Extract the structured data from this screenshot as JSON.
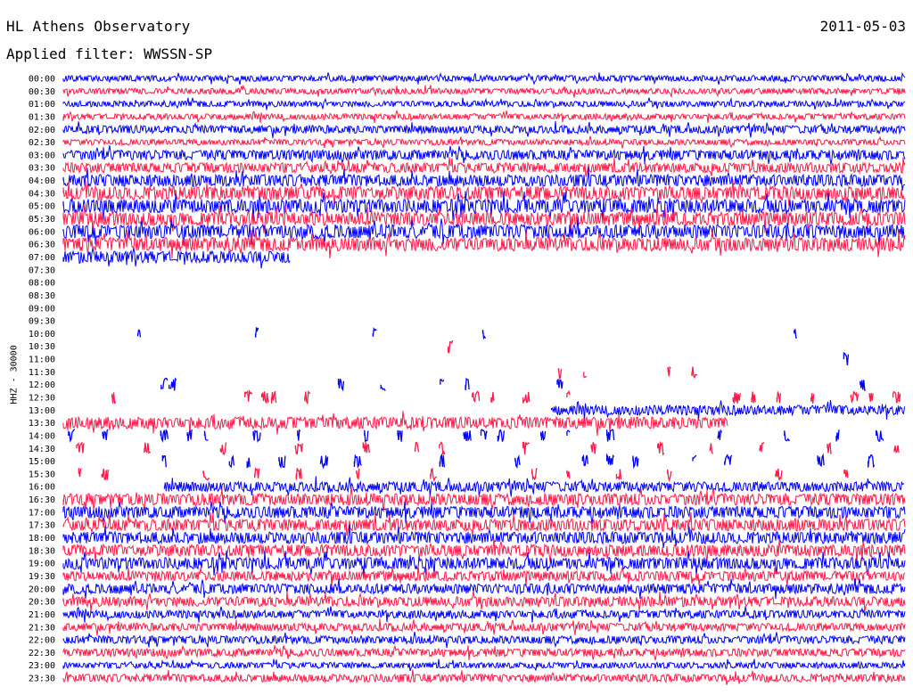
{
  "header": {
    "station": "HL Athens Observatory",
    "date": "2011-05-03",
    "filter": "Applied filter: WWSSN-SP"
  },
  "channel_label": "HHZ - 30000",
  "colors": {
    "odd": "#0000ff",
    "even": "#ff1a4a"
  },
  "chart_data": {
    "type": "line",
    "subtype": "helicorder",
    "title": "HL Athens Observatory",
    "xlabel": "",
    "ylabel": "HHZ - 30000",
    "row_labels": [
      "00:00",
      "00:30",
      "01:00",
      "01:30",
      "02:00",
      "02:30",
      "03:00",
      "03:30",
      "04:00",
      "04:30",
      "05:00",
      "05:30",
      "06:00",
      "06:30",
      "07:00",
      "07:30",
      "08:00",
      "08:30",
      "09:00",
      "09:30",
      "10:00",
      "10:30",
      "11:00",
      "11:30",
      "12:00",
      "12:30",
      "13:00",
      "13:30",
      "14:00",
      "14:30",
      "15:00",
      "15:30",
      "16:00",
      "16:30",
      "17:00",
      "17:30",
      "18:00",
      "18:30",
      "19:00",
      "19:30",
      "20:00",
      "20:30",
      "21:00",
      "21:30",
      "22:00",
      "22:30",
      "23:00",
      "23:30"
    ],
    "row_minutes": 30,
    "series": [
      {
        "label": "00:00",
        "start": 0,
        "end": 1,
        "amp": 3
      },
      {
        "label": "00:30",
        "start": 0,
        "end": 1,
        "amp": 3
      },
      {
        "label": "01:00",
        "start": 0,
        "end": 1,
        "amp": 3
      },
      {
        "label": "01:30",
        "start": 0,
        "end": 1,
        "amp": 3
      },
      {
        "label": "02:00",
        "start": 0,
        "end": 1,
        "amp": 4
      },
      {
        "label": "02:30",
        "start": 0,
        "end": 1,
        "amp": 3
      },
      {
        "label": "03:00",
        "start": 0,
        "end": 1,
        "amp": 5
      },
      {
        "label": "03:30",
        "start": 0,
        "end": 1,
        "amp": 5
      },
      {
        "label": "04:00",
        "start": 0,
        "end": 1,
        "amp": 6
      },
      {
        "label": "04:30",
        "start": 0,
        "end": 1,
        "amp": 7
      },
      {
        "label": "05:00",
        "start": 0,
        "end": 1,
        "amp": 7
      },
      {
        "label": "05:30",
        "start": 0,
        "end": 1,
        "amp": 7
      },
      {
        "label": "06:00",
        "start": 0,
        "end": 1,
        "amp": 7
      },
      {
        "label": "06:30",
        "start": 0,
        "end": 1,
        "amp": 7
      },
      {
        "label": "07:00",
        "start": 0,
        "end": 0.27,
        "amp": 6
      },
      {
        "label": "07:30",
        "start": 0,
        "end": 0,
        "amp": 0
      },
      {
        "label": "08:00",
        "start": 0,
        "end": 0,
        "amp": 0
      },
      {
        "label": "08:30",
        "start": 0,
        "end": 0,
        "amp": 0
      },
      {
        "label": "09:00",
        "start": 0,
        "end": 0,
        "amp": 0
      },
      {
        "label": "09:30",
        "start": 0,
        "end": 0,
        "amp": 0
      },
      {
        "label": "10:00",
        "start": 0,
        "end": 0,
        "amp": 0
      },
      {
        "label": "10:30",
        "start": 0,
        "end": 0,
        "amp": 0
      },
      {
        "label": "11:00",
        "start": 0,
        "end": 0,
        "amp": 0
      },
      {
        "label": "11:30",
        "start": 0,
        "end": 0,
        "amp": 0
      },
      {
        "label": "12:00",
        "start": 0,
        "end": 0,
        "amp": 0
      },
      {
        "label": "12:30",
        "start": 0,
        "end": 0,
        "amp": 0
      },
      {
        "label": "13:00",
        "start": 0.58,
        "end": 1,
        "amp": 5
      },
      {
        "label": "13:30",
        "start": 0,
        "end": 0.79,
        "amp": 6
      },
      {
        "label": "14:00",
        "start": 0,
        "end": 0,
        "amp": 0
      },
      {
        "label": "14:30",
        "start": 0,
        "end": 0,
        "amp": 0
      },
      {
        "label": "15:00",
        "start": 0,
        "end": 0,
        "amp": 0
      },
      {
        "label": "15:30",
        "start": 0,
        "end": 0,
        "amp": 0
      },
      {
        "label": "16:00",
        "start": 0.12,
        "end": 1,
        "amp": 5
      },
      {
        "label": "16:30",
        "start": 0,
        "end": 1,
        "amp": 6
      },
      {
        "label": "17:00",
        "start": 0,
        "end": 1,
        "amp": 6
      },
      {
        "label": "17:30",
        "start": 0,
        "end": 1,
        "amp": 6
      },
      {
        "label": "18:00",
        "start": 0,
        "end": 1,
        "amp": 6
      },
      {
        "label": "18:30",
        "start": 0,
        "end": 1,
        "amp": 6
      },
      {
        "label": "19:00",
        "start": 0,
        "end": 1,
        "amp": 6
      },
      {
        "label": "19:30",
        "start": 0,
        "end": 1,
        "amp": 5
      },
      {
        "label": "20:00",
        "start": 0,
        "end": 1,
        "amp": 5
      },
      {
        "label": "20:30",
        "start": 0,
        "end": 1,
        "amp": 5
      },
      {
        "label": "21:00",
        "start": 0,
        "end": 1,
        "amp": 4
      },
      {
        "label": "21:30",
        "start": 0,
        "end": 1,
        "amp": 4
      },
      {
        "label": "22:00",
        "start": 0,
        "end": 1,
        "amp": 4
      },
      {
        "label": "22:30",
        "start": 0,
        "end": 1,
        "amp": 4
      },
      {
        "label": "23:00",
        "start": 0,
        "end": 1,
        "amp": 3
      },
      {
        "label": "23:30",
        "start": 0,
        "end": 1,
        "amp": 4
      }
    ],
    "bursts": [
      {
        "label": "10:00",
        "pos": [
          0.09,
          0.23,
          0.37,
          0.5,
          0.87
        ]
      },
      {
        "label": "10:30",
        "pos": [
          0.46
        ]
      },
      {
        "label": "11:00",
        "pos": [
          0.93
        ]
      },
      {
        "label": "11:30",
        "pos": [
          0.59,
          0.62,
          0.72,
          0.75
        ]
      },
      {
        "label": "12:00",
        "pos": [
          0.12,
          0.13,
          0.33,
          0.38,
          0.45,
          0.48,
          0.59,
          0.95
        ]
      },
      {
        "label": "12:30",
        "pos": [
          0.06,
          0.22,
          0.24,
          0.25,
          0.29,
          0.49,
          0.51,
          0.55,
          0.6,
          0.8,
          0.82,
          0.85,
          0.89,
          0.94,
          0.96,
          0.99
        ]
      },
      {
        "label": "14:00",
        "pos": [
          0.01,
          0.05,
          0.12,
          0.15,
          0.17,
          0.23,
          0.28,
          0.36,
          0.4,
          0.48,
          0.5,
          0.52,
          0.57,
          0.6,
          0.65,
          0.78,
          0.86,
          0.92,
          0.97
        ]
      },
      {
        "label": "14:30",
        "pos": [
          0.02,
          0.1,
          0.19,
          0.28,
          0.36,
          0.42,
          0.45,
          0.55,
          0.63,
          0.71,
          0.77,
          0.83,
          0.91,
          0.99
        ]
      },
      {
        "label": "15:00",
        "pos": [
          0.12,
          0.2,
          0.22,
          0.26,
          0.31,
          0.35,
          0.45,
          0.54,
          0.62,
          0.65,
          0.68,
          0.75,
          0.79,
          0.9,
          0.96
        ]
      },
      {
        "label": "15:30",
        "pos": [
          0.02,
          0.05,
          0.17,
          0.23,
          0.28,
          0.35,
          0.44,
          0.56,
          0.6,
          0.66,
          0.72,
          0.85,
          0.93
        ]
      }
    ]
  }
}
